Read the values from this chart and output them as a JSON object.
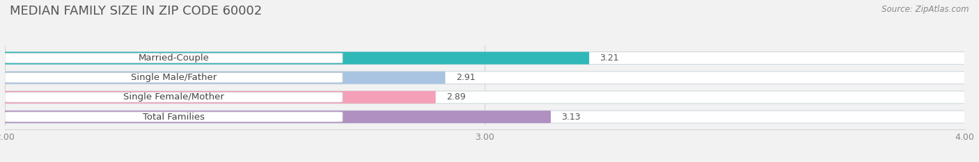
{
  "title": "MEDIAN FAMILY SIZE IN ZIP CODE 60002",
  "source": "Source: ZipAtlas.com",
  "categories": [
    "Married-Couple",
    "Single Male/Father",
    "Single Female/Mother",
    "Total Families"
  ],
  "values": [
    3.21,
    2.91,
    2.89,
    3.13
  ],
  "bar_colors": [
    "#30b8b8",
    "#a8c4e0",
    "#f4a0b8",
    "#b090c0"
  ],
  "xlim": [
    2.0,
    4.0
  ],
  "xticks": [
    2.0,
    3.0,
    4.0
  ],
  "bar_height": 0.62,
  "background_color": "#f2f2f2",
  "row_bg_color": "#e4eaee",
  "title_fontsize": 13,
  "source_fontsize": 8.5,
  "label_fontsize": 9.5,
  "value_fontsize": 9
}
